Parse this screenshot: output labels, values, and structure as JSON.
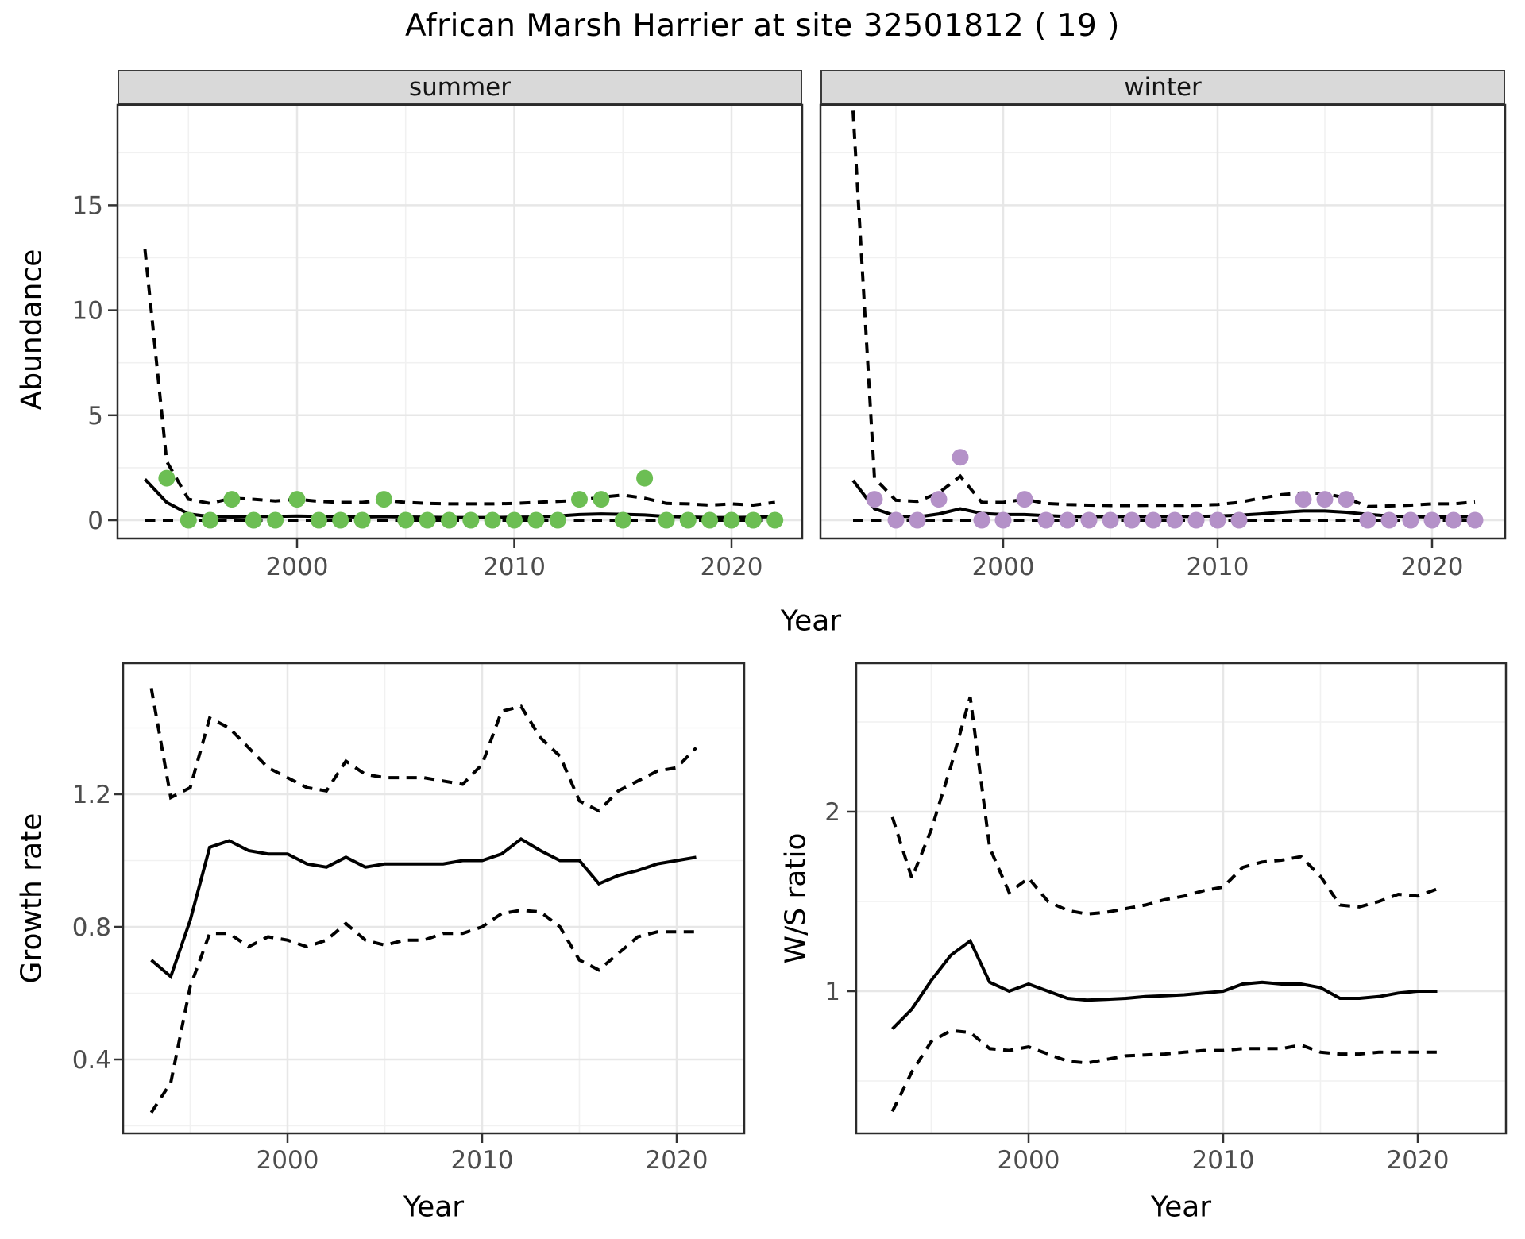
{
  "title": "African Marsh Harrier at site 32501812 ( 19 )",
  "top_row": {
    "ylabel": "Abundance",
    "xlabel": "Year",
    "facets": [
      {
        "label": "summer"
      },
      {
        "label": "winter"
      }
    ]
  },
  "growth": {
    "ylabel": "Growth rate",
    "xlabel": "Year"
  },
  "ws": {
    "ylabel": "W/S ratio",
    "xlabel": "Year"
  },
  "colors": {
    "summer_point": "#6CBE53",
    "winter_point": "#B491C8",
    "line": "#000000",
    "panel_border": "#2b2b2b",
    "grid_major": "#E7E7E7",
    "grid_minor": "#F1F1F1",
    "strip_bg": "#D9D9D9",
    "axis_text": "#4D4D4D"
  },
  "chart_data": [
    {
      "type": "line",
      "panel": "abundance_summer",
      "title": "summer",
      "xlabel": "Year",
      "ylabel": "Abundance",
      "x_ticks": [
        2000,
        2010,
        2020
      ],
      "y_ticks": [
        0,
        5,
        10,
        15
      ],
      "xlim": [
        1992,
        2023
      ],
      "ylim": [
        -0.8,
        19.8
      ],
      "grid": true,
      "year_start": 1993,
      "series": [
        {
          "name": "fitted_abundance",
          "style": "solid",
          "values": [
            1.95,
            0.85,
            0.3,
            0.17,
            0.15,
            0.17,
            0.18,
            0.2,
            0.18,
            0.16,
            0.15,
            0.17,
            0.15,
            0.14,
            0.13,
            0.13,
            0.13,
            0.14,
            0.15,
            0.2,
            0.27,
            0.3,
            0.28,
            0.25,
            0.18,
            0.15,
            0.13,
            0.13,
            0.14,
            0.17
          ]
        },
        {
          "name": "upper_ci",
          "style": "dashed",
          "values": [
            12.9,
            2.8,
            1.0,
            0.8,
            1.05,
            1.0,
            0.92,
            1.0,
            0.9,
            0.85,
            0.85,
            0.95,
            0.85,
            0.8,
            0.78,
            0.78,
            0.78,
            0.8,
            0.85,
            0.9,
            0.95,
            1.1,
            1.2,
            1.05,
            0.8,
            0.78,
            0.72,
            0.78,
            0.72,
            0.85
          ]
        },
        {
          "name": "lower_ci",
          "style": "dashed",
          "values": [
            0,
            0,
            0,
            0,
            0,
            0,
            0,
            0,
            0,
            0,
            0,
            0,
            0,
            0,
            0,
            0,
            0,
            0,
            0,
            0,
            0,
            0,
            0,
            0,
            0,
            0,
            0,
            0,
            0,
            0
          ]
        }
      ],
      "points": {
        "name": "observed_counts",
        "color": "#6CBE53",
        "years": [
          1994,
          1995,
          1996,
          1997,
          1998,
          1999,
          2000,
          2001,
          2002,
          2003,
          2004,
          2005,
          2006,
          2007,
          2008,
          2009,
          2010,
          2011,
          2012,
          2013,
          2014,
          2015,
          2016,
          2017,
          2018,
          2019,
          2020,
          2021,
          2022
        ],
        "values": [
          2,
          0,
          0,
          1,
          0,
          0,
          1,
          0,
          0,
          0,
          1,
          0,
          0,
          0,
          0,
          0,
          0,
          0,
          0,
          1,
          1,
          0,
          2,
          0,
          0,
          0,
          0,
          0,
          0
        ]
      }
    },
    {
      "type": "line",
      "panel": "abundance_winter",
      "title": "winter",
      "xlabel": "Year",
      "ylabel": "Abundance",
      "x_ticks": [
        2000,
        2010,
        2020
      ],
      "y_ticks": [
        0,
        5,
        10,
        15
      ],
      "xlim": [
        1992,
        2023
      ],
      "ylim": [
        -0.8,
        19.8
      ],
      "grid": true,
      "year_start": 1993,
      "series": [
        {
          "name": "fitted_abundance",
          "style": "solid",
          "values": [
            1.9,
            0.55,
            0.2,
            0.15,
            0.3,
            0.55,
            0.32,
            0.27,
            0.27,
            0.22,
            0.18,
            0.17,
            0.17,
            0.17,
            0.17,
            0.17,
            0.18,
            0.2,
            0.24,
            0.3,
            0.38,
            0.44,
            0.44,
            0.38,
            0.28,
            0.2,
            0.17,
            0.15,
            0.15,
            0.18
          ]
        },
        {
          "name": "upper_ci",
          "style": "dashed",
          "values": [
            19.5,
            2.0,
            0.95,
            0.9,
            1.3,
            2.1,
            0.85,
            0.85,
            1.0,
            0.8,
            0.75,
            0.72,
            0.7,
            0.7,
            0.71,
            0.71,
            0.71,
            0.75,
            0.85,
            1.05,
            1.22,
            1.3,
            1.28,
            1.05,
            0.65,
            0.68,
            0.72,
            0.78,
            0.78,
            0.87
          ]
        },
        {
          "name": "lower_ci",
          "style": "dashed",
          "values": [
            0,
            0,
            0,
            0,
            0,
            0,
            0,
            0,
            0,
            0,
            0,
            0,
            0,
            0,
            0,
            0,
            0,
            0,
            0,
            0,
            0,
            0,
            0,
            0,
            0,
            0,
            0,
            0,
            0,
            0
          ]
        }
      ],
      "points": {
        "name": "observed_counts",
        "color": "#B491C8",
        "years": [
          1994,
          1995,
          1996,
          1997,
          1998,
          1999,
          2000,
          2001,
          2002,
          2003,
          2004,
          2005,
          2006,
          2007,
          2008,
          2009,
          2010,
          2011,
          2014,
          2015,
          2016,
          2017,
          2018,
          2019,
          2020,
          2021,
          2022
        ],
        "values": [
          1,
          0,
          0,
          1,
          3,
          0,
          0,
          1,
          0,
          0,
          0,
          0,
          0,
          0,
          0,
          0,
          0,
          0,
          1,
          1,
          1,
          0,
          0,
          0,
          0,
          0,
          0
        ]
      }
    },
    {
      "type": "line",
      "panel": "growth_rate",
      "title": "",
      "xlabel": "Year",
      "ylabel": "Growth rate",
      "x_ticks": [
        2000,
        2010,
        2020
      ],
      "y_ticks": [
        0.4,
        0.8,
        1.2
      ],
      "xlim": [
        1992,
        2022.5
      ],
      "ylim": [
        0.18,
        1.6
      ],
      "grid": true,
      "year_start": 1993,
      "series": [
        {
          "name": "growth_rate_fit",
          "style": "solid",
          "values": [
            0.7,
            0.65,
            0.82,
            1.04,
            1.06,
            1.03,
            1.02,
            1.02,
            0.99,
            0.98,
            1.01,
            0.98,
            0.99,
            0.99,
            0.99,
            0.99,
            1.0,
            1.0,
            1.02,
            1.065,
            1.03,
            1.0,
            1.0,
            0.93,
            0.955,
            0.97,
            0.99,
            1.0,
            1.01
          ]
        },
        {
          "name": "upper_ci",
          "style": "dashed",
          "values": [
            1.52,
            1.19,
            1.22,
            1.43,
            1.4,
            1.34,
            1.28,
            1.25,
            1.22,
            1.21,
            1.3,
            1.26,
            1.25,
            1.25,
            1.25,
            1.24,
            1.23,
            1.29,
            1.45,
            1.465,
            1.37,
            1.315,
            1.18,
            1.15,
            1.21,
            1.24,
            1.27,
            1.28,
            1.34
          ]
        },
        {
          "name": "lower_ci",
          "style": "dashed",
          "values": [
            0.24,
            0.33,
            0.62,
            0.78,
            0.78,
            0.74,
            0.77,
            0.76,
            0.74,
            0.76,
            0.81,
            0.76,
            0.745,
            0.76,
            0.76,
            0.78,
            0.78,
            0.8,
            0.84,
            0.85,
            0.845,
            0.8,
            0.7,
            0.67,
            0.72,
            0.77,
            0.785,
            0.785,
            0.785
          ]
        }
      ]
    },
    {
      "type": "line",
      "panel": "ws_ratio",
      "title": "",
      "xlabel": "Year",
      "ylabel": "W/S ratio",
      "x_ticks": [
        2000,
        2010,
        2020
      ],
      "y_ticks": [
        1,
        2
      ],
      "xlim": [
        1992,
        2022.5
      ],
      "ylim": [
        0.28,
        2.9
      ],
      "grid": true,
      "year_start": 1993,
      "series": [
        {
          "name": "ws_ratio_fit",
          "style": "solid",
          "values": [
            0.79,
            0.9,
            1.06,
            1.2,
            1.28,
            1.05,
            1.0,
            1.04,
            1.0,
            0.96,
            0.95,
            0.955,
            0.96,
            0.97,
            0.975,
            0.98,
            0.99,
            1.0,
            1.04,
            1.05,
            1.04,
            1.04,
            1.02,
            0.96,
            0.96,
            0.97,
            0.99,
            1.0,
            1.0
          ]
        },
        {
          "name": "upper_ci",
          "style": "dashed",
          "values": [
            1.97,
            1.63,
            1.9,
            2.25,
            2.64,
            1.8,
            1.55,
            1.63,
            1.5,
            1.45,
            1.43,
            1.44,
            1.46,
            1.48,
            1.51,
            1.53,
            1.56,
            1.58,
            1.69,
            1.72,
            1.73,
            1.75,
            1.64,
            1.48,
            1.47,
            1.5,
            1.54,
            1.53,
            1.57
          ]
        },
        {
          "name": "lower_ci",
          "style": "dashed",
          "values": [
            0.33,
            0.55,
            0.72,
            0.78,
            0.77,
            0.68,
            0.67,
            0.69,
            0.65,
            0.61,
            0.6,
            0.62,
            0.64,
            0.645,
            0.65,
            0.66,
            0.67,
            0.67,
            0.68,
            0.68,
            0.68,
            0.7,
            0.66,
            0.65,
            0.65,
            0.66,
            0.66,
            0.66,
            0.66
          ]
        }
      ]
    }
  ]
}
